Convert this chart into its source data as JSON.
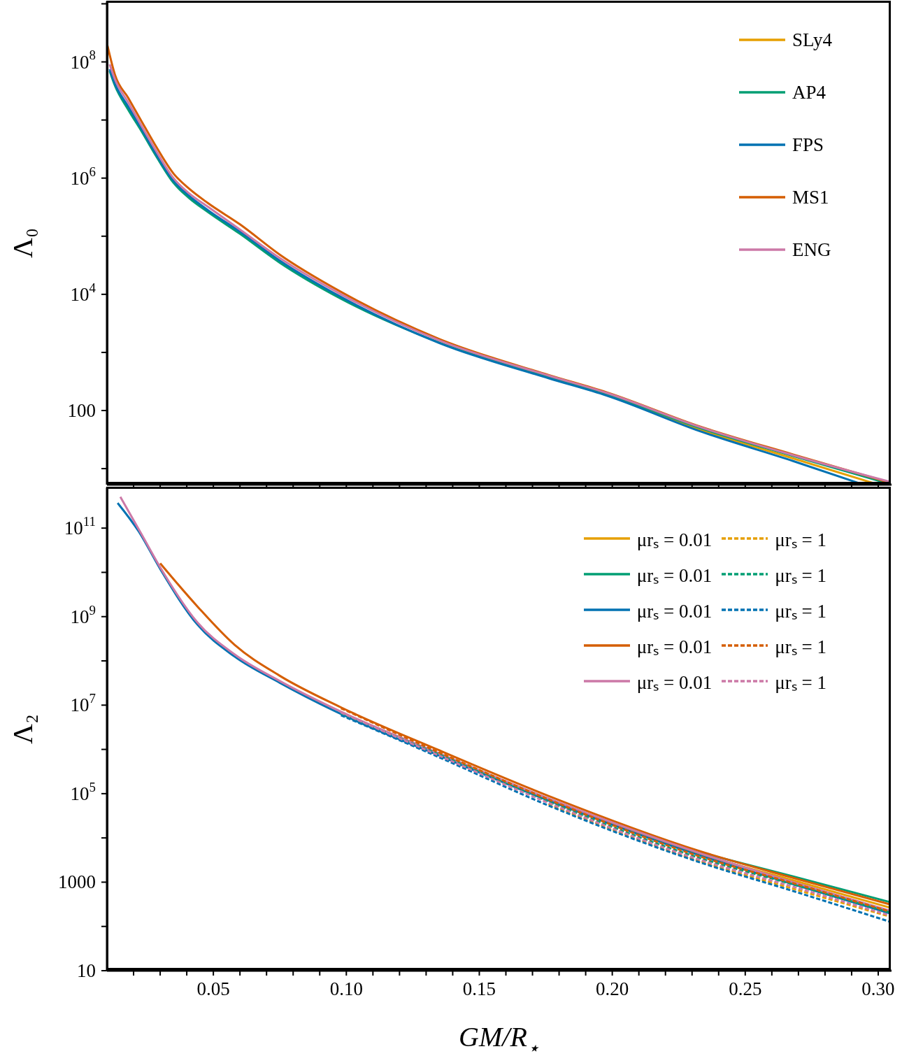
{
  "chart_data": [
    {
      "type": "line",
      "ylabel": "Λ₀",
      "log": "y",
      "tick_labels": "y",
      "legend": "top right",
      "xlim": [
        0.01,
        0.305
      ],
      "xticks": [
        {
          "value": 0.02,
          "label": null
        },
        {
          "value": 0.03,
          "label": null
        },
        {
          "value": 0.04,
          "label": null
        },
        {
          "value": 0.05,
          "label": null
        },
        {
          "value": 0.06,
          "label": null
        },
        {
          "value": 0.07,
          "label": null
        },
        {
          "value": 0.08,
          "label": null
        },
        {
          "value": 0.09,
          "label": null
        },
        {
          "value": 0.1,
          "label": null
        },
        {
          "value": 0.11,
          "label": null
        },
        {
          "value": 0.12,
          "label": null
        },
        {
          "value": 0.13,
          "label": null
        },
        {
          "value": 0.14,
          "label": null
        },
        {
          "value": 0.15,
          "label": null
        },
        {
          "value": 0.16,
          "label": null
        },
        {
          "value": 0.17,
          "label": null
        },
        {
          "value": 0.18,
          "label": null
        },
        {
          "value": 0.19,
          "label": null
        },
        {
          "value": 0.2,
          "label": null
        },
        {
          "value": 0.21,
          "label": null
        },
        {
          "value": 0.22,
          "label": null
        },
        {
          "value": 0.23,
          "label": null
        },
        {
          "value": 0.24,
          "label": null
        },
        {
          "value": 0.25,
          "label": null
        },
        {
          "value": 0.26,
          "label": null
        },
        {
          "value": 0.27,
          "label": null
        },
        {
          "value": 0.28,
          "label": null
        },
        {
          "value": 0.29,
          "label": null
        },
        {
          "value": 0.3,
          "label": null
        }
      ],
      "ylim": [
        5.3,
        1100000000
      ],
      "yticks": [
        {
          "value": 10,
          "label": null
        },
        100,
        {
          "value": 1000,
          "label": null
        },
        {
          "value": 10000,
          "label": "10$^{4}$"
        },
        {
          "value": 100000,
          "label": null
        },
        {
          "value": 1000000,
          "label": "10$^{6}$"
        },
        {
          "value": 10000000,
          "label": null
        },
        {
          "value": 100000000,
          "label": "10$^{8}$"
        },
        {
          "value": 1000000000,
          "label": null
        }
      ],
      "series": [
        {
          "name": "SLy4",
          "color": "#e69f00",
          "x": [
            0.176,
            0.198,
            0.233,
            0.268,
            0.2995
          ],
          "values": [
            370,
            185,
            47,
            15,
            5.4
          ]
        },
        {
          "name": "AP4",
          "color": "#009e73",
          "x": [
            0.011,
            0.013,
            0.018,
            0.023,
            0.028,
            0.035,
            0.041,
            0.048,
            0.06,
            0.075,
            0.098,
            0.135,
            0.176,
            0.198,
            0.233,
            0.268,
            0.304
          ],
          "values": [
            70000000,
            39000000,
            15000000,
            6400000,
            2600000,
            830000,
            450000,
            260000,
            110000,
            35000,
            8400,
            1480,
            375,
            190,
            50,
            16.5,
            5.5
          ]
        },
        {
          "name": "FPS",
          "color": "#0072b2",
          "x": [
            0.011,
            0.013,
            0.018,
            0.023,
            0.028,
            0.035,
            0.041,
            0.048,
            0.06,
            0.075,
            0.098,
            0.135,
            0.176,
            0.198,
            0.233,
            0.268,
            0.2939
          ],
          "values": [
            75000000,
            42000000,
            17000000,
            7000000,
            2800000,
            900000,
            490000,
            280000,
            120000,
            38000,
            9000,
            1450,
            360,
            180,
            44,
            13.5,
            5.4
          ]
        },
        {
          "name": "MS1",
          "color": "#d55e00",
          "x": [
            0.0102,
            0.013,
            0.018,
            0.023,
            0.028,
            0.035,
            0.041,
            0.048,
            0.06,
            0.075,
            0.098,
            0.135,
            0.176,
            0.198,
            0.233,
            0.268,
            0.304
          ],
          "values": [
            190000000,
            60000000,
            24000000,
            9500000,
            3800000,
            1200000,
            650000,
            370000,
            160000,
            48000,
            11000,
            1700,
            410,
            205,
            53,
            17.5,
            5.8
          ]
        },
        {
          "name": "ENG",
          "color": "#cc79a7",
          "x": [
            0.011,
            0.013,
            0.018,
            0.023,
            0.028,
            0.035,
            0.041,
            0.048,
            0.06,
            0.075,
            0.098,
            0.135,
            0.176,
            0.198,
            0.233,
            0.268,
            0.304
          ],
          "values": [
            91000000,
            50000000,
            20000000,
            7900000,
            3200000,
            1000000,
            540000,
            320000,
            130000,
            42000,
            10000,
            1600,
            400,
            200,
            52,
            17,
            6.0
          ]
        }
      ]
    },
    {
      "type": "line",
      "xlabel": "GM/R$_{⋆}$",
      "ylabel": "Λ₂",
      "log": "y",
      "legend": "top right",
      "xlim": [
        0.01,
        0.305
      ],
      "xticks": [
        {
          "value": 0.02,
          "label": null
        },
        {
          "value": 0.03,
          "label": null
        },
        {
          "value": 0.04,
          "label": null
        },
        0.05,
        {
          "value": 0.06,
          "label": null
        },
        {
          "value": 0.07,
          "label": null
        },
        {
          "value": 0.08,
          "label": null
        },
        {
          "value": 0.09,
          "label": null
        },
        {
          "value": 0.1,
          "label": "0.10"
        },
        {
          "value": 0.11,
          "label": null
        },
        {
          "value": 0.12,
          "label": null
        },
        {
          "value": 0.13,
          "label": null
        },
        {
          "value": 0.14,
          "label": null
        },
        0.15,
        {
          "value": 0.16,
          "label": null
        },
        {
          "value": 0.17,
          "label": null
        },
        {
          "value": 0.18,
          "label": null
        },
        {
          "value": 0.19,
          "label": null
        },
        {
          "value": 0.2,
          "label": "0.20"
        },
        {
          "value": 0.21,
          "label": null
        },
        {
          "value": 0.22,
          "label": null
        },
        {
          "value": 0.23,
          "label": null
        },
        {
          "value": 0.24,
          "label": null
        },
        0.25,
        {
          "value": 0.26,
          "label": null
        },
        {
          "value": 0.27,
          "label": null
        },
        {
          "value": 0.28,
          "label": null
        },
        {
          "value": 0.29,
          "label": null
        },
        {
          "value": 0.3,
          "label": "0.30"
        }
      ],
      "ylim": [
        10,
        830000000000
      ],
      "yticks": [
        10,
        {
          "value": 100,
          "label": null
        },
        1000,
        {
          "value": 10000,
          "label": null
        },
        {
          "value": 100000,
          "label": "10$^{5}$"
        },
        {
          "value": 1000000,
          "label": null
        },
        {
          "value": 10000000,
          "label": "10$^{7}$"
        },
        {
          "value": 100000000,
          "label": null
        },
        {
          "value": 1000000000,
          "label": "10$^{9}$"
        },
        {
          "value": 10000000000,
          "label": null
        },
        {
          "value": 100000000000,
          "label": "10$^{11}$"
        }
      ],
      "series": [
        {
          "name": "μrₛ = 0.01",
          "color": "#e69f00",
          "line_style": "solid",
          "x": [
            0.176,
            0.233,
            0.268,
            0.304
          ],
          "values": [
            74000,
            4300,
            1100,
            270
          ]
        },
        {
          "name": "μrₛ = 0.01",
          "color": "#009e73",
          "line_style": "solid",
          "x": [
            0.233,
            0.268,
            0.304
          ],
          "values": [
            4700,
            1350,
            360
          ]
        },
        {
          "name": "μrₛ = 0.01",
          "color": "#0072b2",
          "line_style": "solid",
          "x": [
            0.014,
            0.022,
            0.03,
            0.044,
            0.058,
            0.075,
            0.098,
            0.135,
            0.176,
            0.233,
            0.268,
            0.304
          ],
          "values": [
            370000000000,
            83000000000,
            12000000000,
            660000000,
            125000000,
            32000000,
            6300000,
            720000,
            70000,
            4000,
            900,
            200
          ]
        },
        {
          "name": "μrₛ = 0.01",
          "color": "#d55e00",
          "line_style": "solid",
          "x": [
            0.03,
            0.044,
            0.058,
            0.075,
            0.098,
            0.135,
            0.176,
            0.233,
            0.268,
            0.304
          ],
          "values": [
            16000000000,
            1700000000,
            230000000,
            46000000,
            8900000,
            950000,
            89000,
            5000,
            1250,
            320
          ]
        },
        {
          "name": "μrₛ = 0.01",
          "color": "#cc79a7",
          "line_style": "solid",
          "x": [
            0.015,
            0.022,
            0.03,
            0.044,
            0.058,
            0.075,
            0.098,
            0.135,
            0.176,
            0.233,
            0.268,
            0.304
          ],
          "values": [
            510000000000,
            93000000000,
            13000000000,
            740000000,
            140000000,
            35000000,
            7100000,
            810000,
            78000,
            4500,
            1000,
            230
          ]
        },
        {
          "name": "μrₛ = 1",
          "color": "#e69f00",
          "line_style": "dashed",
          "x": [
            0.176,
            0.233,
            0.268,
            0.304
          ],
          "values": [
            58000,
            3000,
            710,
            170
          ]
        },
        {
          "name": "μrₛ = 1",
          "color": "#009e73",
          "line_style": "dashed",
          "x": [
            0.098,
            0.135,
            0.176,
            0.233,
            0.268,
            0.304
          ],
          "values": [
            6300000,
            760000,
            66000,
            3500,
            890,
            210
          ]
        },
        {
          "name": "μrₛ = 1",
          "color": "#0072b2",
          "line_style": "dashed",
          "x": [
            0.098,
            0.135,
            0.176,
            0.233,
            0.268,
            0.304
          ],
          "values": [
            5900000,
            660000,
            54000,
            2800,
            630,
            130
          ]
        },
        {
          "name": "μrₛ = 1",
          "color": "#d55e00",
          "line_style": "dashed",
          "x": [
            0.098,
            0.135,
            0.176,
            0.233,
            0.268,
            0.304
          ],
          "values": [
            8500000,
            850000,
            74000,
            3800,
            950,
            220
          ]
        },
        {
          "name": "μrₛ = 1",
          "color": "#cc79a7",
          "line_style": "dashed",
          "x": [
            0.098,
            0.135,
            0.176,
            0.233,
            0.268,
            0.304
          ],
          "values": [
            6800000,
            720000,
            62000,
            3200,
            790,
            180
          ]
        }
      ]
    }
  ]
}
